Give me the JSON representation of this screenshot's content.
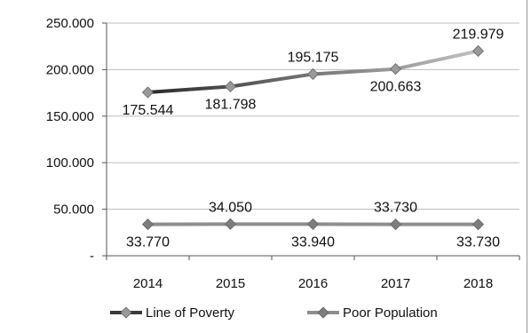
{
  "chart_data": {
    "type": "line",
    "categories": [
      "2014",
      "2015",
      "2016",
      "2017",
      "2018"
    ],
    "ylim": [
      0,
      250000
    ],
    "yticks": [
      {
        "value": 0,
        "label": "-"
      },
      {
        "value": 50000,
        "label": "50.000"
      },
      {
        "value": 100000,
        "label": "100.000"
      },
      {
        "value": 150000,
        "label": "150.000"
      },
      {
        "value": 200000,
        "label": "200.000"
      },
      {
        "value": 250000,
        "label": "250.000"
      }
    ],
    "grid": true,
    "legend_position": "bottom",
    "series": [
      {
        "name": "Line of Poverty",
        "values": [
          175544,
          181798,
          195175,
          200663,
          219979
        ],
        "labels": [
          "175.544",
          "181.798",
          "195.175",
          "200.663",
          "219.979"
        ],
        "label_side": [
          "below",
          "below",
          "above",
          "below",
          "above"
        ],
        "color_start": "#2b2b2b",
        "color_end": "#c2c2c2",
        "marker_color": "#9a9a9a"
      },
      {
        "name": "Poor Population",
        "values": [
          33770,
          34050,
          33940,
          33730,
          33730
        ],
        "labels": [
          "33.770",
          "34.050",
          "33.940",
          "33.730",
          "33.730"
        ],
        "label_side": [
          "below",
          "above",
          "below",
          "above",
          "below"
        ],
        "color": "#8e8e8e",
        "marker_color": "#7d7d7d"
      }
    ]
  }
}
